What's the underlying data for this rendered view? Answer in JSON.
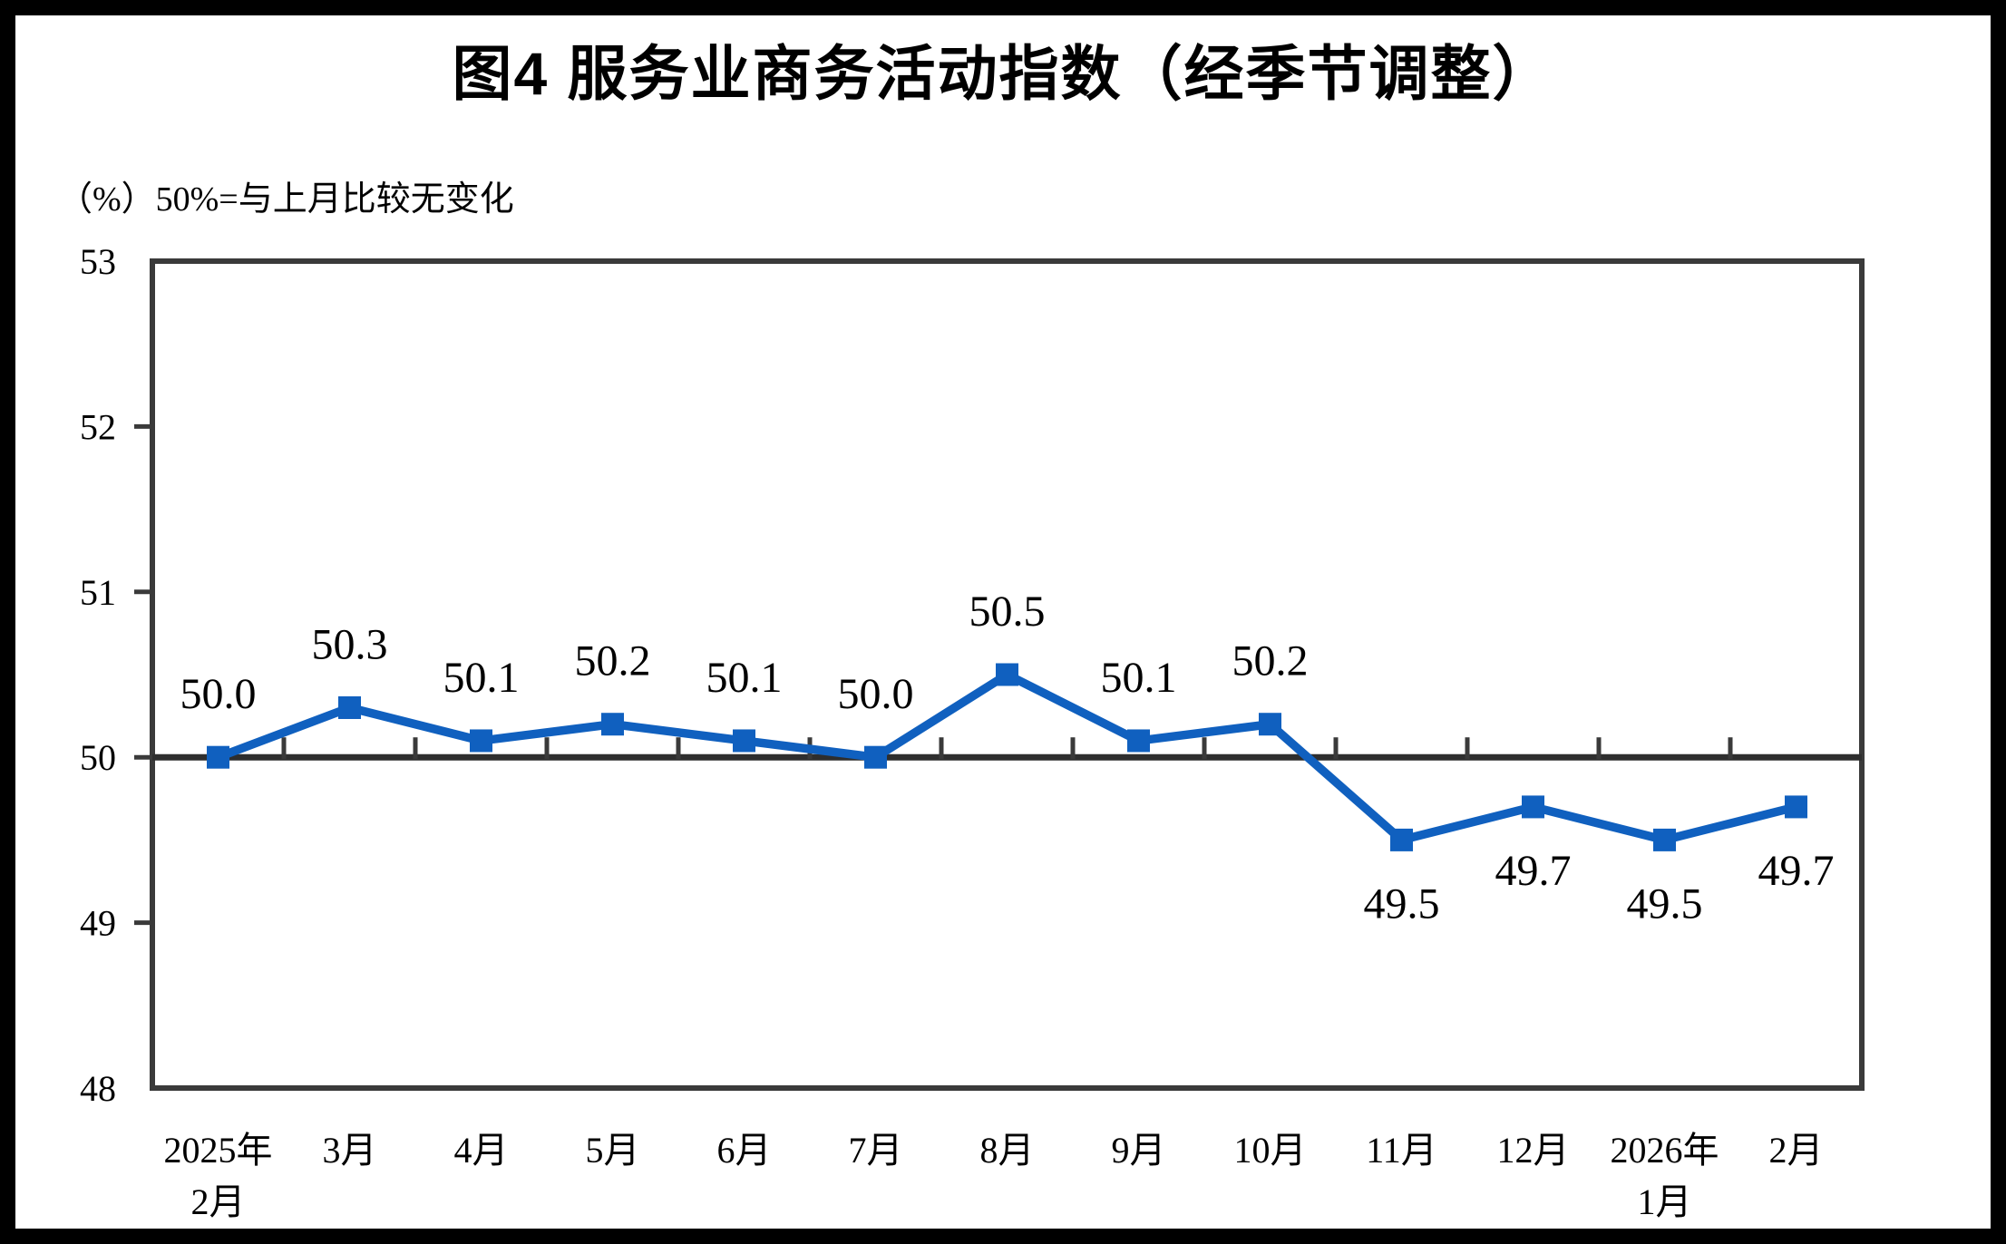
{
  "page": {
    "title": "图4  服务业商务活动指数（经季节调整）",
    "unit_note": "（%）50%=与上月比较无变化"
  },
  "colors": {
    "background": "#ffffff",
    "frame": "#000000",
    "axis": "#3a3a3a",
    "baseline": "#2e2e2e",
    "series_line": "#1060bf",
    "marker": "#1060bf",
    "label_text": "#000000"
  },
  "chart_data": {
    "type": "line",
    "title": "图4  服务业商务活动指数（经季节调整）",
    "unit_label": "（%）50%=与上月比较无变化",
    "categories": [
      "2025年\n2月",
      "3月",
      "4月",
      "5月",
      "6月",
      "7月",
      "8月",
      "9月",
      "10月",
      "11月",
      "12月",
      "2026年\n1月",
      "2月"
    ],
    "values": [
      50.0,
      50.3,
      50.1,
      50.2,
      50.1,
      50.0,
      50.5,
      50.1,
      50.2,
      49.5,
      49.7,
      49.5,
      49.7
    ],
    "data_labels": [
      "50.0",
      "50.3",
      "50.1",
      "50.2",
      "50.1",
      "50.0",
      "50.5",
      "50.1",
      "50.2",
      "49.5",
      "49.7",
      "49.5",
      "49.7"
    ],
    "ylim": [
      48,
      53
    ],
    "yticks": [
      48,
      49,
      50,
      51,
      52,
      53
    ],
    "baseline": 50,
    "grid": false,
    "legend": false,
    "marker_shape": "square",
    "label_position_rule": "above line for values >= 50, below for values < 50"
  }
}
